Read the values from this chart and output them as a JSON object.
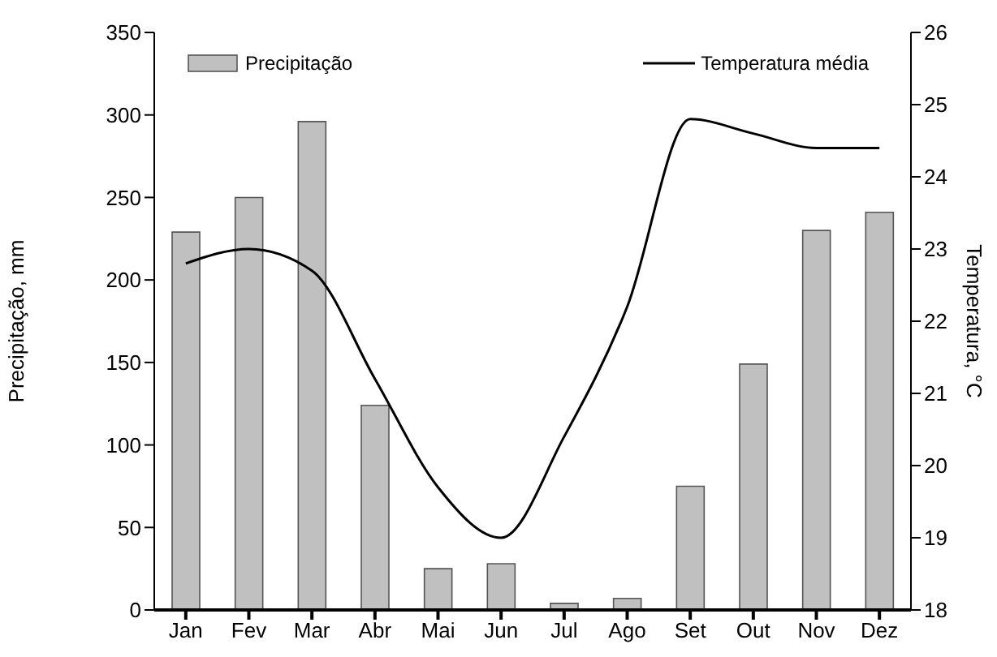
{
  "chart_data": {
    "type": "bar",
    "categories": [
      "Jan",
      "Fev",
      "Mar",
      "Abr",
      "Mai",
      "Jun",
      "Jul",
      "Ago",
      "Set",
      "Out",
      "Nov",
      "Dez"
    ],
    "ylabel": "Precipitação, mm",
    "y2label": "Temperatura, °C",
    "series": [
      {
        "name": "Precipitação",
        "color": "#c0c0c0",
        "values": [
          229,
          250,
          296,
          124,
          25,
          28,
          4,
          7,
          75,
          149,
          230,
          241
        ]
      },
      {
        "name": "Temperatura média",
        "type": "line",
        "axis": "y2",
        "color": "#000000",
        "values": [
          22.8,
          23.0,
          22.7,
          21.2,
          19.7,
          19.0,
          20.4,
          22.2,
          24.8,
          24.6,
          24.4,
          24.4
        ]
      }
    ],
    "ylim": [
      0,
      350
    ],
    "yticks": [
      0,
      50,
      100,
      150,
      200,
      250,
      300,
      350
    ],
    "y2lim": [
      18,
      26
    ],
    "y2ticks": [
      18,
      19,
      20,
      21,
      22,
      23,
      24,
      25,
      26
    ],
    "grid": false,
    "legend": "top",
    "marker": "none"
  }
}
